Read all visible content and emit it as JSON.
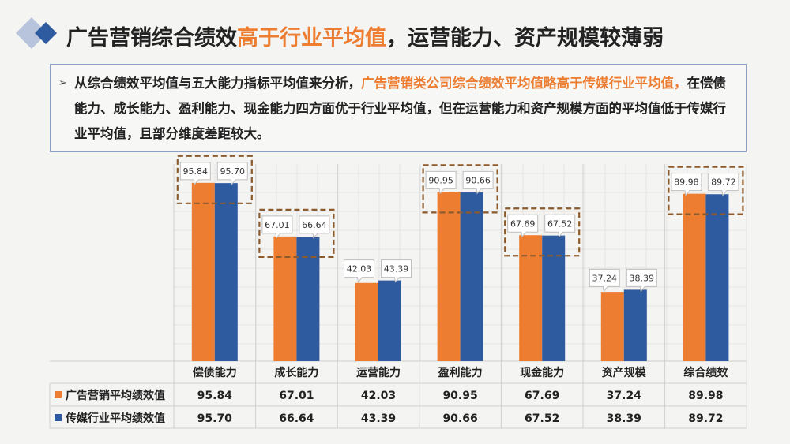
{
  "header": {
    "title_part1": "广告营销综合绩效",
    "title_highlight": "高于行业平均值",
    "title_part2": "，运营能力、资产规模较薄弱"
  },
  "intro": {
    "bullet": "➢",
    "text_part1": "从综合绩效平均值与五大能力指标平均值来分析，",
    "text_highlight": "广告营销类公司综合绩效平均值略高于传媒行业平均值，",
    "text_part2": "在偿债能力、成长能力、盈利能力、现金能力四方面优于行业平均值，但在运营能力和资产规模方面的平均值低于传媒行业平均值，且部分维度差距较大。"
  },
  "colors": {
    "accent": "#ed7d31",
    "series1": "#ed7d31",
    "series2": "#2e5aa0",
    "callout_border": "#8c5a2b"
  },
  "chart_data": {
    "type": "bar",
    "categories": [
      "偿债能力",
      "成长能力",
      "运营能力",
      "盈利能力",
      "现金能力",
      "资产规模",
      "综合绩效"
    ],
    "series": [
      {
        "name": "广告营销平均绩效值",
        "values": [
          95.84,
          67.01,
          42.03,
          90.95,
          67.69,
          37.24,
          89.98
        ],
        "labels": [
          "95.84",
          "67.01",
          "42.03",
          "90.95",
          "67.69",
          "37.24",
          "89.98"
        ]
      },
      {
        "name": "传媒行业平均绩效值",
        "values": [
          95.7,
          66.64,
          43.39,
          90.66,
          67.52,
          38.39,
          89.72
        ],
        "labels": [
          "95.70",
          "66.64",
          "43.39",
          "90.66",
          "67.52",
          "38.39",
          "89.72"
        ]
      }
    ],
    "highlighted_categories": [
      "偿债能力",
      "成长能力",
      "盈利能力",
      "现金能力",
      "综合绩效"
    ],
    "ylim": [
      0,
      100
    ],
    "grid": true,
    "legend": "data table below chart"
  }
}
